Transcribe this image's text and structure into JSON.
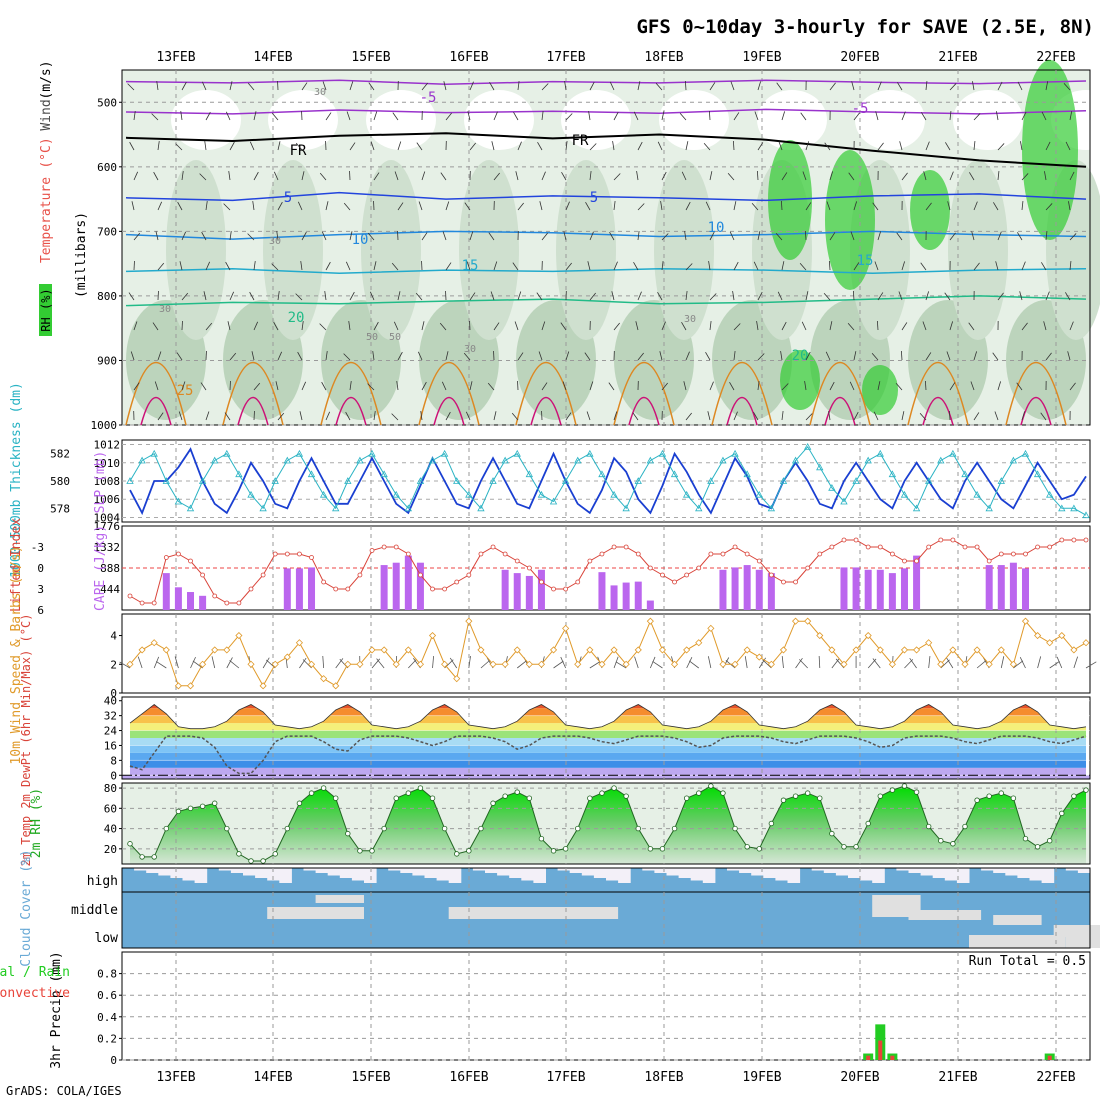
{
  "title": "GFS 0~10day 3-hourly for SAVE (2.5E, 8N)",
  "credit": "GrADS: COLA/IGES",
  "dates": [
    "13FEB",
    "14FEB",
    "15FEB",
    "16FEB",
    "17FEB",
    "18FEB",
    "19FEB",
    "20FEB",
    "21FEB",
    "22FEB"
  ],
  "colors": {
    "rh_green": "#33cc33",
    "temp_label": "#e8524a",
    "wind_label": "#4a4a4a",
    "slp": "#1a3fd1",
    "thick": "#2ab3c4",
    "cape": "#bb66ee",
    "li": "#d9443a",
    "wind10": "#e09a2a",
    "cloud": "#6aaad6",
    "precip_total": "#22cc22",
    "precip_conv": "#e8443a"
  },
  "chart_data": [
    {
      "type": "heatmap",
      "panel": "upper-air",
      "ylabel_parts": [
        "RH (%)",
        "Temperature",
        "(°C)",
        "Wind",
        "(m/s)"
      ],
      "ylabel2": "(millibars)",
      "yticks": [
        "500",
        "600",
        "700",
        "800",
        "900",
        "1000"
      ],
      "ylim": [
        1000,
        450
      ],
      "contour_labels": [
        "-5",
        "-5",
        "FR",
        "FR",
        "5",
        "5",
        "10",
        "10",
        "15",
        "15",
        "20",
        "20",
        "25",
        "30",
        "30",
        "30",
        "50",
        "50",
        "30",
        "30"
      ],
      "isotherms": [
        {
          "label": "-5",
          "levels": [
            468,
            470,
            466,
            472,
            468,
            470,
            466,
            469,
            471,
            467
          ]
        },
        {
          "label": "-5",
          "levels": [
            515,
            518,
            512,
            516,
            514,
            517,
            511,
            515,
            518,
            513
          ]
        },
        {
          "label": "FR",
          "levels": [
            555,
            560,
            552,
            548,
            556,
            550,
            558,
            575,
            590,
            600
          ]
        },
        {
          "label": "5",
          "levels": [
            648,
            652,
            640,
            650,
            645,
            648,
            652,
            645,
            642,
            650
          ]
        },
        {
          "label": "10",
          "levels": [
            705,
            712,
            705,
            700,
            702,
            708,
            705,
            700,
            705,
            708
          ]
        },
        {
          "label": "15",
          "levels": [
            762,
            758,
            765,
            760,
            762,
            758,
            760,
            765,
            760,
            758
          ]
        },
        {
          "label": "20",
          "levels": [
            815,
            810,
            812,
            808,
            805,
            812,
            810,
            805,
            800,
            805
          ]
        }
      ]
    },
    {
      "type": "line",
      "panel": "slp-thickness",
      "ylabel_left": "1000-500mb Thickness (dm)",
      "ylabel_right": "SLP (mb)",
      "yticks_left": [
        "582",
        "580",
        "578"
      ],
      "yticks_right": [
        "1012",
        "1010",
        "1008",
        "1006",
        "1004"
      ],
      "ylim_slp": [
        1003.5,
        1012.5
      ],
      "ylim_thick": [
        577,
        583
      ],
      "series": [
        {
          "name": "SLP (mb)",
          "values": [
            1007,
            1004.5,
            1008,
            1008,
            1009.5,
            1011.5,
            1008,
            1005.5,
            1004.5,
            1007,
            1010,
            1008,
            1005.5,
            1005,
            1008,
            1010.5,
            1008,
            1005.5,
            1005.5,
            1008,
            1010.5,
            1008,
            1005.5,
            1004.5,
            1007.5,
            1010.5,
            1008,
            1005.5,
            1005,
            1008,
            1010.5,
            1008,
            1005.5,
            1005,
            1008,
            1011,
            1008,
            1005.5,
            1004.5,
            1007,
            1010.5,
            1009,
            1006,
            1004.5,
            1007.5,
            1011,
            1009,
            1006.5,
            1004.5,
            1007.5,
            1010.5,
            1008.5,
            1005.5,
            1005,
            1008,
            1010,
            1008,
            1005.5,
            1005,
            1008,
            1010,
            1008,
            1006,
            1005,
            1008,
            1010,
            1008,
            1006,
            1005,
            1008,
            1010,
            1008,
            1006,
            1005,
            1007.5,
            1010,
            1008,
            1006,
            1006.5,
            1008.5
          ]
        },
        {
          "name": "Thickness (dm)",
          "values": [
            580,
            581.5,
            582,
            580,
            578.5,
            578,
            580,
            581.5,
            582,
            580.5,
            579,
            578,
            580,
            581.5,
            582,
            580.5,
            579,
            578,
            580,
            581.5,
            582,
            580.5,
            579,
            578,
            580,
            581.5,
            582,
            580,
            579,
            578,
            580,
            581.5,
            582,
            580.5,
            579,
            578.5,
            580,
            581.5,
            582,
            580.5,
            579,
            578,
            580,
            581.5,
            582,
            580.5,
            579,
            578,
            580,
            581.5,
            582,
            580.5,
            579,
            578,
            580,
            581.5,
            582.5,
            581,
            579.5,
            578.5,
            580,
            581.5,
            582,
            580.5,
            579,
            578,
            580,
            581.5,
            582,
            580.5,
            579,
            578,
            580,
            581.5,
            582,
            580.5,
            579,
            578,
            578,
            577.5
          ]
        }
      ]
    },
    {
      "type": "bar",
      "panel": "cape-li",
      "ylabel_left": "Lifted Index",
      "ylabel_right": "CAPE (J/kg)",
      "yticks_left": [
        "-3",
        "0",
        "3",
        "6"
      ],
      "yticks_right": [
        "1776",
        "1332",
        "888",
        "444"
      ],
      "ylim_li": [
        -6,
        6
      ],
      "ylim_cape": [
        0,
        1776
      ],
      "series": [
        {
          "name": "CAPE (J/kg)",
          "values": [
            0,
            0,
            0,
            780,
            480,
            380,
            300,
            0,
            0,
            0,
            0,
            0,
            0,
            880,
            880,
            900,
            0,
            0,
            0,
            0,
            0,
            950,
            1000,
            1150,
            1000,
            0,
            0,
            0,
            0,
            0,
            0,
            850,
            780,
            720,
            850,
            0,
            0,
            0,
            0,
            800,
            520,
            580,
            600,
            200,
            0,
            0,
            0,
            0,
            0,
            850,
            900,
            950,
            850,
            780,
            0,
            0,
            0,
            0,
            0,
            900,
            900,
            850,
            850,
            780,
            880,
            1150,
            0,
            0,
            0,
            0,
            0,
            950,
            950,
            1000,
            880,
            0,
            0,
            0,
            0,
            0
          ]
        },
        {
          "name": "Lifted Index",
          "values": [
            4,
            5,
            5,
            -1.5,
            -2,
            -1,
            1,
            4,
            5,
            5,
            3,
            1,
            -2,
            -2,
            -2,
            -1.5,
            2,
            3,
            3,
            1,
            -2.5,
            -3,
            -3,
            -2,
            1,
            3,
            3,
            2,
            1,
            -2,
            -3,
            -2,
            -1,
            0,
            2,
            3,
            3,
            2,
            -1,
            -2,
            -3,
            -3,
            -2,
            0,
            1,
            2,
            1,
            0,
            -2,
            -2,
            -3,
            -2,
            -1,
            1,
            2,
            2,
            0,
            -2,
            -3,
            -4,
            -4,
            -3,
            -3,
            -2,
            -1,
            -1,
            -3,
            -4,
            -4,
            -3,
            -3,
            -1,
            -2,
            -2,
            -2,
            -3,
            -3,
            -4,
            -4,
            -4
          ]
        }
      ]
    },
    {
      "type": "line",
      "panel": "wind10m",
      "ylabel": "10m Wind Speed & Barbs (m/s)",
      "yticks": [
        "4",
        "2",
        "0"
      ],
      "ylim": [
        0,
        5.5
      ],
      "series": [
        {
          "name": "10m Wind Speed",
          "values": [
            2,
            3,
            3.5,
            3,
            0.5,
            0.5,
            2,
            3,
            3,
            4,
            2,
            0.5,
            2,
            2.5,
            3.5,
            2,
            1,
            0.5,
            2,
            2,
            3,
            3,
            2,
            3,
            2,
            4,
            2,
            1,
            5,
            3,
            2,
            2,
            3,
            2,
            2,
            3,
            4.5,
            2,
            3,
            2,
            3,
            2,
            3,
            5,
            3,
            2,
            3,
            3.5,
            4.5,
            2,
            2,
            3,
            2.5,
            2,
            3,
            5,
            5,
            4,
            3,
            2,
            3,
            4,
            3,
            2,
            3,
            3,
            3.5,
            2,
            3,
            2,
            3,
            2,
            3,
            2,
            5,
            4,
            3.5,
            4,
            3,
            3.5
          ]
        }
      ]
    },
    {
      "type": "area",
      "panel": "temp2m",
      "ylabel": "2m Temp 2m DewPt (6hr Min/Max) (°C)",
      "yticks": [
        "40",
        "32",
        "24",
        "16",
        "8",
        "0"
      ],
      "ylim": [
        -2,
        42
      ],
      "series": [
        {
          "name": "2m Temp",
          "values": [
            28,
            33,
            38,
            33,
            26,
            25,
            25,
            26,
            29,
            35,
            38,
            34,
            27,
            26,
            25,
            26,
            29,
            35,
            38,
            34,
            27,
            26,
            25,
            26,
            29,
            35,
            38,
            34,
            27,
            26,
            25,
            26,
            29,
            35,
            38,
            34,
            27,
            26,
            25,
            26,
            29,
            35,
            38,
            34,
            27,
            26,
            25,
            26,
            29,
            35,
            38,
            34,
            27,
            26,
            25,
            26,
            29,
            35,
            38,
            34,
            27,
            26,
            25,
            26,
            29,
            35,
            38,
            34,
            27,
            26,
            25,
            26,
            29,
            35,
            38,
            34,
            27,
            26,
            25,
            26
          ]
        },
        {
          "name": "2m DewPt",
          "values": [
            5,
            3,
            12,
            21,
            21,
            21,
            20,
            15,
            5,
            1,
            1,
            8,
            18,
            21,
            21,
            21,
            18,
            14,
            13,
            19,
            21,
            21,
            21,
            20,
            18,
            16,
            18,
            21,
            21,
            21,
            20,
            18,
            14,
            16,
            20,
            21,
            21,
            21,
            20,
            18,
            17,
            19,
            21,
            21,
            21,
            20,
            18,
            15,
            16,
            20,
            21,
            21,
            21,
            20,
            18,
            17,
            19,
            21,
            21,
            21,
            20,
            18,
            15,
            16,
            20,
            21,
            21,
            21,
            20,
            18,
            17,
            19,
            21,
            21,
            21,
            20,
            18,
            17,
            19,
            21
          ]
        }
      ]
    },
    {
      "type": "area",
      "panel": "rh2m",
      "ylabel": "2m RH (%)",
      "yticks": [
        "80",
        "60",
        "40",
        "20"
      ],
      "ylim": [
        5,
        85
      ],
      "series": [
        {
          "name": "2m RH",
          "values": [
            25,
            12,
            12,
            40,
            57,
            60,
            62,
            65,
            40,
            15,
            8,
            8,
            15,
            40,
            65,
            75,
            80,
            70,
            35,
            18,
            18,
            40,
            70,
            75,
            80,
            70,
            40,
            15,
            18,
            40,
            65,
            72,
            76,
            70,
            30,
            18,
            20,
            40,
            70,
            75,
            80,
            72,
            40,
            20,
            20,
            40,
            70,
            75,
            82,
            75,
            40,
            22,
            20,
            45,
            68,
            72,
            75,
            70,
            35,
            22,
            22,
            45,
            72,
            78,
            82,
            76,
            42,
            28,
            25,
            42,
            68,
            72,
            75,
            70,
            30,
            22,
            28,
            55,
            72,
            78
          ]
        }
      ]
    },
    {
      "type": "bar",
      "panel": "cloud",
      "ylabel": "Cloud Cover (%)",
      "levels": [
        "high",
        "middle",
        "low"
      ]
    },
    {
      "type": "bar",
      "panel": "precip",
      "ylabel": "3hr Precip (mm)",
      "ylabel_left": [
        "Total / Rain",
        "Convective"
      ],
      "annotation": "Run Total = 0.5",
      "yticks": [
        "0.8",
        "0.6",
        "0.4",
        "0.2",
        "0"
      ],
      "ylim": [
        0,
        1.0
      ],
      "series": [
        {
          "name": "Total / Rain",
          "values": [
            0,
            0,
            0,
            0,
            0,
            0,
            0,
            0,
            0,
            0,
            0,
            0,
            0,
            0,
            0,
            0,
            0,
            0,
            0,
            0,
            0,
            0,
            0,
            0,
            0,
            0,
            0,
            0,
            0,
            0,
            0,
            0,
            0,
            0,
            0,
            0,
            0,
            0,
            0,
            0,
            0,
            0,
            0,
            0,
            0,
            0,
            0,
            0,
            0,
            0,
            0,
            0,
            0,
            0,
            0,
            0,
            0,
            0,
            0,
            0,
            0,
            0.06,
            0.33,
            0.06,
            0,
            0,
            0,
            0,
            0,
            0,
            0,
            0,
            0,
            0,
            0,
            0,
            0.06,
            0,
            0,
            0
          ]
        },
        {
          "name": "Convective",
          "values": [
            0,
            0,
            0,
            0,
            0,
            0,
            0,
            0,
            0,
            0,
            0,
            0,
            0,
            0,
            0,
            0,
            0,
            0,
            0,
            0,
            0,
            0,
            0,
            0,
            0,
            0,
            0,
            0,
            0,
            0,
            0,
            0,
            0,
            0,
            0,
            0,
            0,
            0,
            0,
            0,
            0,
            0,
            0,
            0,
            0,
            0,
            0,
            0,
            0,
            0,
            0,
            0,
            0,
            0,
            0,
            0,
            0,
            0,
            0,
            0,
            0,
            0.04,
            0.18,
            0.04,
            0,
            0,
            0,
            0,
            0,
            0,
            0,
            0,
            0,
            0,
            0,
            0,
            0.04,
            0,
            0,
            0
          ]
        }
      ]
    }
  ]
}
